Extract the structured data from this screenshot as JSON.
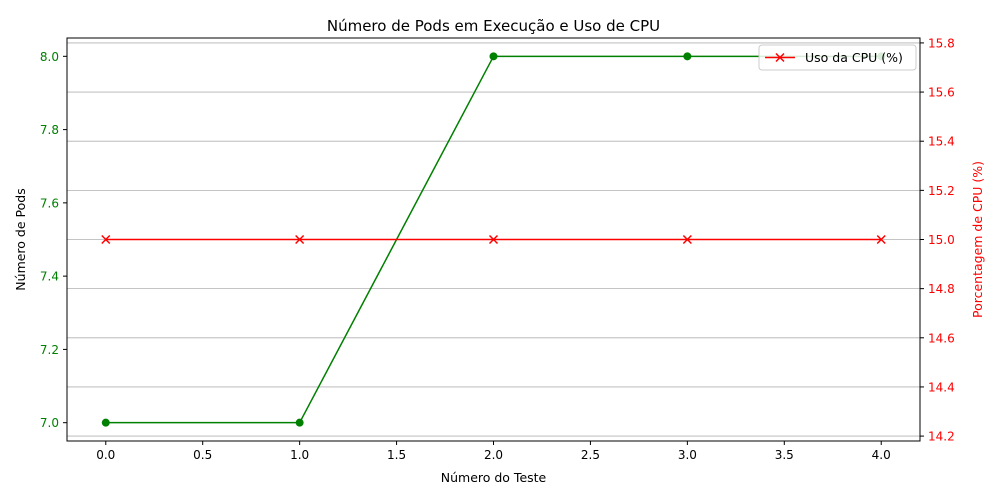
{
  "chart_data": {
    "type": "line",
    "title": "Número de Pods em Execução e Uso de CPU",
    "xlabel": "Número do Teste",
    "x": [
      0,
      1,
      2,
      3,
      4
    ],
    "xlim": [
      -0.2,
      4.2
    ],
    "xticks": [
      0.0,
      0.5,
      1.0,
      1.5,
      2.0,
      2.5,
      3.0,
      3.5,
      4.0
    ],
    "xtick_labels": [
      "0.0",
      "0.5",
      "1.0",
      "1.5",
      "2.0",
      "2.5",
      "3.0",
      "3.5",
      "4.0"
    ],
    "left_axis": {
      "label": "Número de Pods",
      "color": "#008000",
      "ylim": [
        6.95,
        8.05
      ],
      "ticks": [
        7.0,
        7.2,
        7.4,
        7.6,
        7.8,
        8.0
      ],
      "tick_labels": [
        "7.0",
        "7.2",
        "7.4",
        "7.6",
        "7.8",
        "8.0"
      ]
    },
    "right_axis": {
      "label": "Porcentagem de CPU (%)",
      "color": "#ff0000",
      "ylim": [
        14.18,
        15.82
      ],
      "ticks": [
        14.2,
        14.4,
        14.6,
        14.8,
        15.0,
        15.2,
        15.4,
        15.6,
        15.8
      ],
      "tick_labels": [
        "14.2",
        "14.4",
        "14.6",
        "14.8",
        "15.0",
        "15.2",
        "15.4",
        "15.6",
        "15.8"
      ]
    },
    "series": [
      {
        "axis": "left",
        "color": "#008000",
        "marker": "circle",
        "values": [
          7,
          7,
          8,
          8,
          8
        ]
      },
      {
        "name": "Uso da CPU (%)",
        "axis": "right",
        "color": "#ff0000",
        "marker": "x",
        "values": [
          15.0,
          15.0,
          15.0,
          15.0,
          15.0
        ]
      }
    ],
    "grid": "right-axis horizontal",
    "legend": {
      "placement": "top-right",
      "entries": [
        "Uso da CPU (%)"
      ]
    }
  }
}
